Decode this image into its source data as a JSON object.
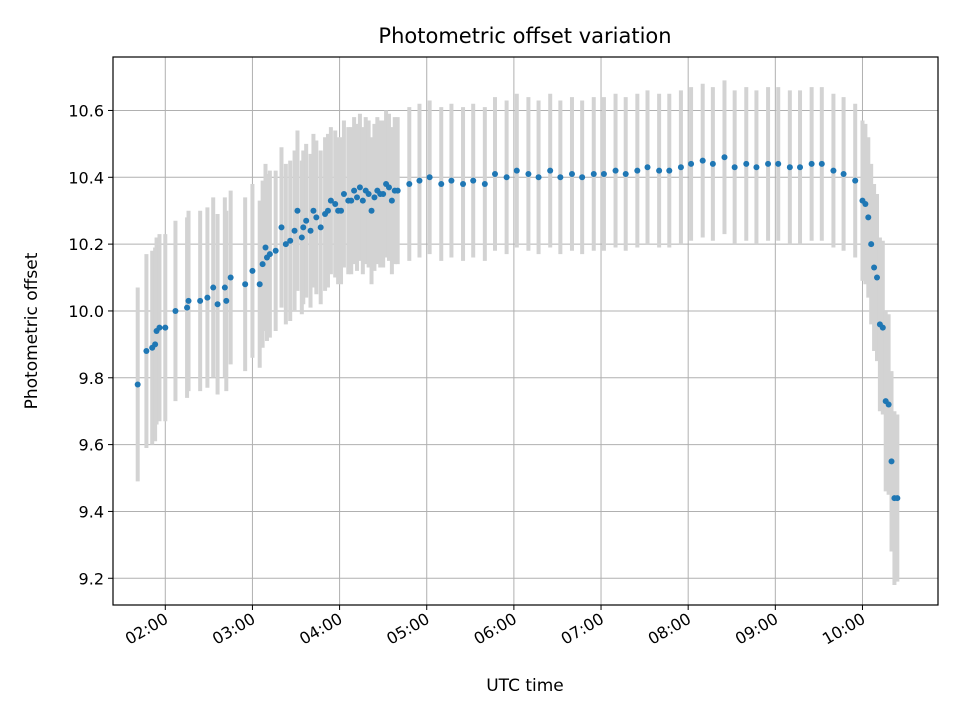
{
  "chart_data": {
    "type": "scatter",
    "title": "Photometric offset variation",
    "xlabel": "UTC time",
    "ylabel": "Photometric offset",
    "x_ticks": [
      "02:00",
      "03:00",
      "04:00",
      "05:00",
      "06:00",
      "07:00",
      "08:00",
      "09:00",
      "10:00"
    ],
    "x_range": [
      "01:24",
      "10:52"
    ],
    "y_ticks": [
      "9.2",
      "9.4",
      "9.6",
      "9.8",
      "10.0",
      "10.2",
      "10.4",
      "10.6"
    ],
    "ylim": [
      9.12,
      10.76
    ],
    "grid": true,
    "point_color": "#1f77b4",
    "errorbar_color": "#d3d3d3",
    "series": [
      {
        "x": [
          "01:41",
          "01:47",
          "01:51",
          "01:53",
          "01:54",
          "01:56",
          "02:00",
          "02:07",
          "02:15",
          "02:16",
          "02:24",
          "02:29",
          "02:33",
          "02:36",
          "02:41",
          "02:42",
          "02:45",
          "02:55",
          "03:00",
          "03:05",
          "03:07",
          "03:09",
          "03:10",
          "03:12",
          "03:16",
          "03:20",
          "03:23",
          "03:26",
          "03:29",
          "03:31",
          "03:34",
          "03:35",
          "03:37",
          "03:40",
          "03:42",
          "03:44",
          "03:47",
          "03:50",
          "03:52",
          "03:54",
          "03:57",
          "03:59",
          "04:01",
          "04:03",
          "04:06",
          "04:08",
          "04:10",
          "04:12",
          "04:14",
          "04:16",
          "04:18",
          "04:20",
          "04:22",
          "04:24",
          "04:26",
          "04:28",
          "04:30",
          "04:32",
          "04:34",
          "04:36",
          "04:38",
          "04:40",
          "04:48",
          "04:55",
          "05:02",
          "05:10",
          "05:17",
          "05:25",
          "05:32",
          "05:40",
          "05:47",
          "05:55",
          "06:02",
          "06:10",
          "06:17",
          "06:25",
          "06:32",
          "06:40",
          "06:47",
          "06:55",
          "07:02",
          "07:10",
          "07:17",
          "07:25",
          "07:32",
          "07:40",
          "07:47",
          "07:55",
          "08:02",
          "08:10",
          "08:17",
          "08:25",
          "08:32",
          "08:40",
          "08:47",
          "08:55",
          "09:02",
          "09:10",
          "09:17",
          "09:25",
          "09:32",
          "09:40",
          "09:47",
          "09:55",
          "10:00",
          "10:02",
          "10:04",
          "10:06",
          "10:08",
          "10:10",
          "10:12",
          "10:14",
          "10:16",
          "10:18",
          "10:20",
          "10:22",
          "10:24"
        ],
        "y": [
          9.78,
          9.88,
          9.89,
          9.9,
          9.94,
          9.95,
          9.95,
          10.0,
          10.01,
          10.03,
          10.03,
          10.04,
          10.07,
          10.02,
          10.07,
          10.03,
          10.1,
          10.08,
          10.12,
          10.08,
          10.14,
          10.19,
          10.16,
          10.17,
          10.18,
          10.25,
          10.2,
          10.21,
          10.24,
          10.3,
          10.22,
          10.25,
          10.27,
          10.24,
          10.3,
          10.28,
          10.25,
          10.29,
          10.3,
          10.33,
          10.32,
          10.3,
          10.3,
          10.35,
          10.33,
          10.33,
          10.36,
          10.34,
          10.37,
          10.33,
          10.36,
          10.35,
          10.3,
          10.34,
          10.36,
          10.35,
          10.35,
          10.38,
          10.37,
          10.33,
          10.36,
          10.36,
          10.38,
          10.39,
          10.4,
          10.38,
          10.39,
          10.38,
          10.39,
          10.38,
          10.41,
          10.4,
          10.42,
          10.41,
          10.4,
          10.42,
          10.4,
          10.41,
          10.4,
          10.41,
          10.41,
          10.42,
          10.41,
          10.42,
          10.43,
          10.42,
          10.42,
          10.43,
          10.44,
          10.45,
          10.44,
          10.46,
          10.43,
          10.44,
          10.43,
          10.44,
          10.44,
          10.43,
          10.43,
          10.44,
          10.44,
          10.42,
          10.41,
          10.39,
          10.33,
          10.32,
          10.28,
          10.2,
          10.13,
          10.1,
          9.96,
          9.95,
          9.73,
          9.72,
          9.55,
          9.44,
          9.44
        ],
        "yerr": [
          0.29,
          0.29,
          0.29,
          0.29,
          0.28,
          0.28,
          0.28,
          0.27,
          0.27,
          0.27,
          0.27,
          0.27,
          0.27,
          0.27,
          0.27,
          0.27,
          0.26,
          0.26,
          0.26,
          0.25,
          0.25,
          0.25,
          0.25,
          0.25,
          0.24,
          0.24,
          0.24,
          0.24,
          0.24,
          0.24,
          0.23,
          0.23,
          0.23,
          0.23,
          0.23,
          0.23,
          0.23,
          0.23,
          0.23,
          0.22,
          0.22,
          0.22,
          0.22,
          0.22,
          0.22,
          0.22,
          0.22,
          0.22,
          0.22,
          0.22,
          0.22,
          0.22,
          0.22,
          0.22,
          0.22,
          0.22,
          0.22,
          0.22,
          0.22,
          0.22,
          0.22,
          0.22,
          0.23,
          0.23,
          0.23,
          0.23,
          0.23,
          0.23,
          0.23,
          0.23,
          0.23,
          0.23,
          0.23,
          0.23,
          0.23,
          0.23,
          0.23,
          0.23,
          0.23,
          0.23,
          0.23,
          0.23,
          0.23,
          0.23,
          0.23,
          0.23,
          0.23,
          0.23,
          0.23,
          0.23,
          0.23,
          0.23,
          0.23,
          0.23,
          0.23,
          0.23,
          0.23,
          0.23,
          0.23,
          0.23,
          0.23,
          0.23,
          0.23,
          0.23,
          0.24,
          0.24,
          0.24,
          0.24,
          0.25,
          0.25,
          0.26,
          0.26,
          0.27,
          0.27,
          0.27,
          0.26,
          0.25
        ]
      }
    ]
  }
}
